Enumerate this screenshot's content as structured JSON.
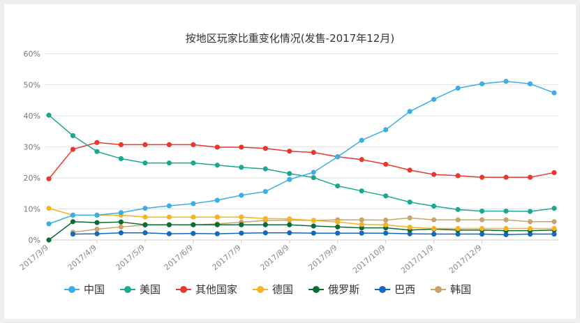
{
  "chart_data": {
    "type": "line",
    "title": "按地区玩家比重变化情况(发售-2017年12月)",
    "x_tick_labels": [
      "2017/3/9",
      "2017/4/9",
      "2017/5/9",
      "2017/6/9",
      "2017/7/9",
      "2017/8/9",
      "2017/9/9",
      "2017/10/9",
      "2017/11/9",
      "2017/12/9"
    ],
    "y_tick_labels": [
      "0%",
      "10%",
      "20%",
      "30%",
      "40%",
      "50%",
      "60%"
    ],
    "ylim": [
      0,
      60
    ],
    "grid": true,
    "legend_position": "bottom",
    "series": [
      {
        "name": "中国",
        "color": "#3aaee5",
        "values": [
          5.2,
          8.0,
          8.0,
          8.8,
          10.2,
          11.0,
          11.7,
          12.8,
          14.4,
          15.6,
          19.5,
          21.8,
          26.8,
          32.1,
          35.5,
          41.4,
          45.3,
          48.9,
          50.3,
          51.1,
          50.3,
          47.4
        ]
      },
      {
        "name": "美国",
        "color": "#1aa890",
        "values": [
          40.2,
          33.6,
          28.5,
          26.2,
          24.8,
          24.8,
          24.8,
          24.1,
          23.4,
          22.9,
          21.4,
          20.1,
          17.4,
          15.8,
          14.2,
          12.2,
          10.9,
          9.8,
          9.3,
          9.3,
          9.2,
          10.2
        ]
      },
      {
        "name": "其他国家",
        "color": "#e8372f",
        "values": [
          19.7,
          29.2,
          31.4,
          30.7,
          30.7,
          30.7,
          30.7,
          29.9,
          29.9,
          29.5,
          28.6,
          28.2,
          26.8,
          25.9,
          24.4,
          22.5,
          21.1,
          20.7,
          20.2,
          20.2,
          20.2,
          21.7
        ]
      },
      {
        "name": "德国",
        "color": "#f6b324",
        "values": [
          10.2,
          8.0,
          8.0,
          8.0,
          7.4,
          7.4,
          7.4,
          7.4,
          7.4,
          6.9,
          6.8,
          6.3,
          5.8,
          5.0,
          4.9,
          4.1,
          3.7,
          3.7,
          3.7,
          3.7,
          3.7,
          3.7
        ]
      },
      {
        "name": "俄罗斯",
        "color": "#0a6b34",
        "values": [
          0.0,
          5.9,
          5.6,
          5.8,
          4.9,
          4.9,
          4.9,
          4.9,
          4.9,
          4.9,
          4.9,
          4.5,
          4.2,
          3.9,
          3.9,
          3.2,
          3.5,
          3.2,
          3.2,
          3.0,
          3.0,
          3.2
        ]
      },
      {
        "name": "巴西",
        "color": "#1368c0",
        "values": [
          null,
          1.9,
          2.0,
          2.3,
          2.3,
          2.0,
          2.1,
          2.0,
          2.2,
          2.3,
          2.3,
          2.2,
          2.2,
          2.2,
          2.2,
          2.0,
          1.9,
          1.9,
          1.9,
          1.7,
          1.9,
          1.9
        ]
      },
      {
        "name": "韩国",
        "color": "#c9a36b",
        "values": [
          null,
          2.5,
          3.5,
          4.2,
          4.8,
          4.9,
          4.9,
          5.2,
          5.7,
          6.3,
          6.4,
          6.3,
          6.5,
          6.5,
          6.4,
          7.1,
          6.5,
          6.5,
          6.5,
          6.5,
          5.9,
          5.9
        ]
      }
    ]
  }
}
